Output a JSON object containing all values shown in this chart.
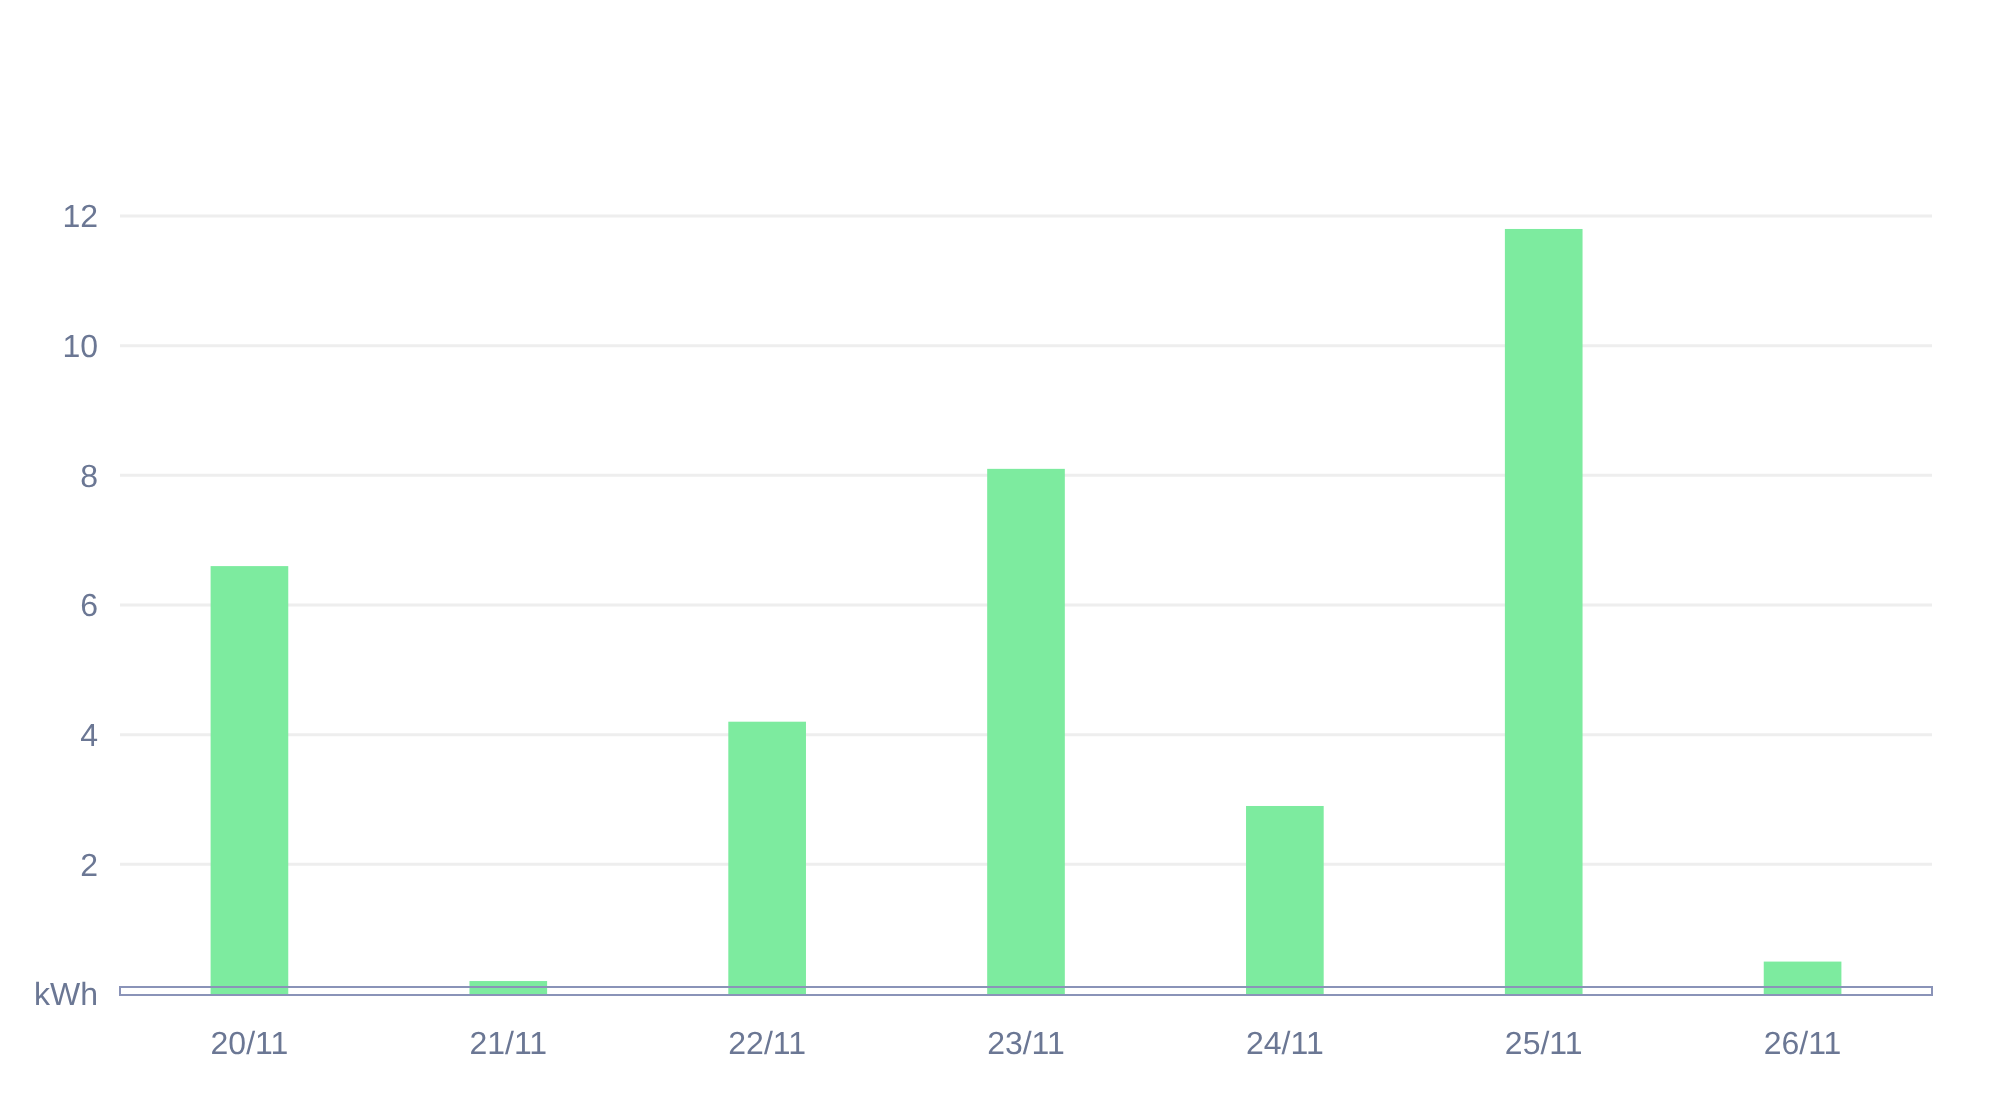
{
  "chart_data": {
    "type": "bar",
    "categories": [
      "20/11",
      "21/11",
      "22/11",
      "23/11",
      "24/11",
      "25/11",
      "26/11"
    ],
    "values": [
      6.6,
      0.2,
      4.2,
      8.1,
      2.9,
      11.8,
      0.5
    ],
    "color": "#7deb9f",
    "ylim": [
      0,
      12
    ],
    "yticks": [
      {
        "value": 0,
        "label": "kWh"
      },
      2,
      4,
      6,
      8,
      10,
      12
    ],
    "grid": "y"
  }
}
